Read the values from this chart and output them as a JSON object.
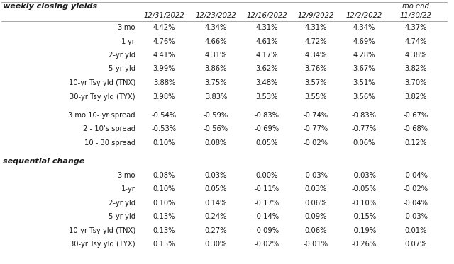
{
  "title": "weekly closing yields",
  "section2_title": "sequential change",
  "col_header_dates": [
    "12/31/2022",
    "12/23/2022",
    "12/16/2022",
    "12/9/2022",
    "12/2/2022",
    "11/30/22"
  ],
  "mo_end_label": "mo end",
  "section1_rows": [
    [
      "3-mo",
      "4.42%",
      "4.34%",
      "4.31%",
      "4.31%",
      "4.34%",
      "4.37%"
    ],
    [
      "1-yr",
      "4.76%",
      "4.66%",
      "4.61%",
      "4.72%",
      "4.69%",
      "4.74%"
    ],
    [
      "2-yr yld",
      "4.41%",
      "4.31%",
      "4.17%",
      "4.34%",
      "4.28%",
      "4.38%"
    ],
    [
      "5-yr yld",
      "3.99%",
      "3.86%",
      "3.62%",
      "3.76%",
      "3.67%",
      "3.82%"
    ],
    [
      "10-yr Tsy yld (TNX)",
      "3.88%",
      "3.75%",
      "3.48%",
      "3.57%",
      "3.51%",
      "3.70%"
    ],
    [
      "30-yr Tsy yld (TYX)",
      "3.98%",
      "3.83%",
      "3.53%",
      "3.55%",
      "3.56%",
      "3.82%"
    ]
  ],
  "section_spread_rows": [
    [
      "3 mo 10- yr spread",
      "-0.54%",
      "-0.59%",
      "-0.83%",
      "-0.74%",
      "-0.83%",
      "-0.67%"
    ],
    [
      "2 - 10's spread",
      "-0.53%",
      "-0.56%",
      "-0.69%",
      "-0.77%",
      "-0.77%",
      "-0.68%"
    ],
    [
      "10 - 30 spread",
      "0.10%",
      "0.08%",
      "0.05%",
      "-0.02%",
      "0.06%",
      "0.12%"
    ]
  ],
  "section3_rows": [
    [
      "3-mo",
      "0.08%",
      "0.03%",
      "0.00%",
      "-0.03%",
      "-0.03%",
      "-0.04%"
    ],
    [
      "1-yr",
      "0.10%",
      "0.05%",
      "-0.11%",
      "0.03%",
      "-0.05%",
      "-0.02%"
    ],
    [
      "2-yr yld",
      "0.10%",
      "0.14%",
      "-0.17%",
      "0.06%",
      "-0.10%",
      "-0.04%"
    ],
    [
      "5-yr yld",
      "0.13%",
      "0.24%",
      "-0.14%",
      "0.09%",
      "-0.15%",
      "-0.03%"
    ],
    [
      "10-yr Tsy yld (TNX)",
      "0.13%",
      "0.27%",
      "-0.09%",
      "0.06%",
      "-0.19%",
      "0.01%"
    ],
    [
      "30-yr Tsy yld (TYX)",
      "0.15%",
      "0.30%",
      "-0.02%",
      "-0.01%",
      "-0.26%",
      "0.07%"
    ]
  ],
  "bg_color": "#ffffff",
  "text_color": "#1a1a1a",
  "line_color": "#999999",
  "fs_title": 8.0,
  "fs_header": 7.2,
  "fs_data": 7.2,
  "fs_label": 7.2
}
